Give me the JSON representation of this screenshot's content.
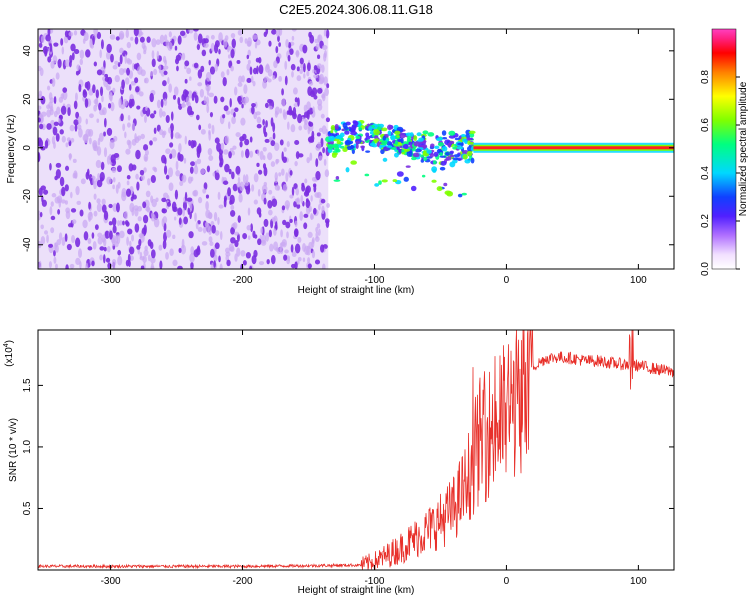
{
  "title": "C2E5.2024.306.08.11.G18",
  "colors": {
    "snr_line": "#e8302a",
    "noise_purple": "#7b2de0",
    "noise_light": "#c9a6f2",
    "axis": "#000000"
  },
  "chart_data": [
    {
      "type": "heatmap",
      "title": "C2E5.2024.306.08.11.G18",
      "xlabel": "Height of straight line (km)",
      "ylabel": "Frequency (Hz)",
      "xlim": [
        -355,
        127
      ],
      "ylim": [
        -50,
        49
      ],
      "x_ticks": [
        -300,
        -200,
        -100,
        0,
        100
      ],
      "y_ticks": [
        -40,
        -20,
        0,
        20,
        40
      ],
      "x_tick_labels": [
        "-300",
        "-200",
        "-100",
        "0",
        "100"
      ],
      "y_tick_labels": [
        "-40",
        "-20",
        "0",
        "20",
        "40"
      ],
      "colorbar": {
        "label": "Normalized spectral amplitude",
        "range": [
          0,
          1
        ],
        "ticks": [
          0.0,
          0.2,
          0.4,
          0.6,
          0.8
        ],
        "tick_labels": [
          "0.0",
          "0.2",
          "0.4",
          "0.6",
          "0.8"
        ],
        "colormap": "rainbow (white-violet-blue-cyan-green-yellow-red)"
      },
      "regions": [
        {
          "description": "broadband low-amplitude noise",
          "x_range": [
            -355,
            -135
          ],
          "freq_range": [
            -50,
            49
          ],
          "amplitude": 0.15
        },
        {
          "description": "scattered signal",
          "x_range": [
            -135,
            -25
          ],
          "freq_range": [
            -20,
            12
          ],
          "amplitude": 0.45
        },
        {
          "description": "coherent carrier line",
          "x_range": [
            -25,
            127
          ],
          "freq": 0,
          "amplitude": 0.95
        }
      ],
      "grid": false,
      "legend": "none"
    },
    {
      "type": "line",
      "xlabel": "Height of straight line (km)",
      "ylabel": "SNR (10 * v/v)",
      "y_multiplier_label": "(x10",
      "y_multiplier_exponent": "4",
      "xlim": [
        -355,
        127
      ],
      "ylim": [
        0,
        1.95
      ],
      "x_ticks": [
        -300,
        -200,
        -100,
        0,
        100
      ],
      "y_ticks": [
        0.5,
        1.0,
        1.5
      ],
      "x_tick_labels": [
        "-300",
        "-200",
        "-100",
        "0",
        "100"
      ],
      "y_tick_labels": [
        "0.5",
        "1.0",
        "1.5"
      ],
      "series": [
        {
          "color": "#e8302a",
          "x": [
            -355,
            -300,
            -250,
            -200,
            -150,
            -110,
            -100,
            -90,
            -80,
            -70,
            -60,
            -50,
            -40,
            -30,
            -25,
            -20,
            -15,
            -10,
            -5,
            0,
            5,
            10,
            15,
            20,
            30,
            40,
            50,
            60,
            70,
            80,
            90,
            100,
            110,
            120,
            127
          ],
          "y": [
            0.03,
            0.03,
            0.03,
            0.03,
            0.035,
            0.04,
            0.07,
            0.12,
            0.18,
            0.25,
            0.32,
            0.4,
            0.5,
            0.7,
            0.9,
            1.05,
            1.1,
            1.15,
            1.2,
            1.28,
            1.35,
            1.45,
            1.55,
            1.65,
            1.72,
            1.73,
            1.72,
            1.7,
            1.7,
            1.68,
            1.67,
            1.66,
            1.64,
            1.62,
            1.61
          ]
        }
      ],
      "grid": false,
      "legend": "none"
    }
  ]
}
